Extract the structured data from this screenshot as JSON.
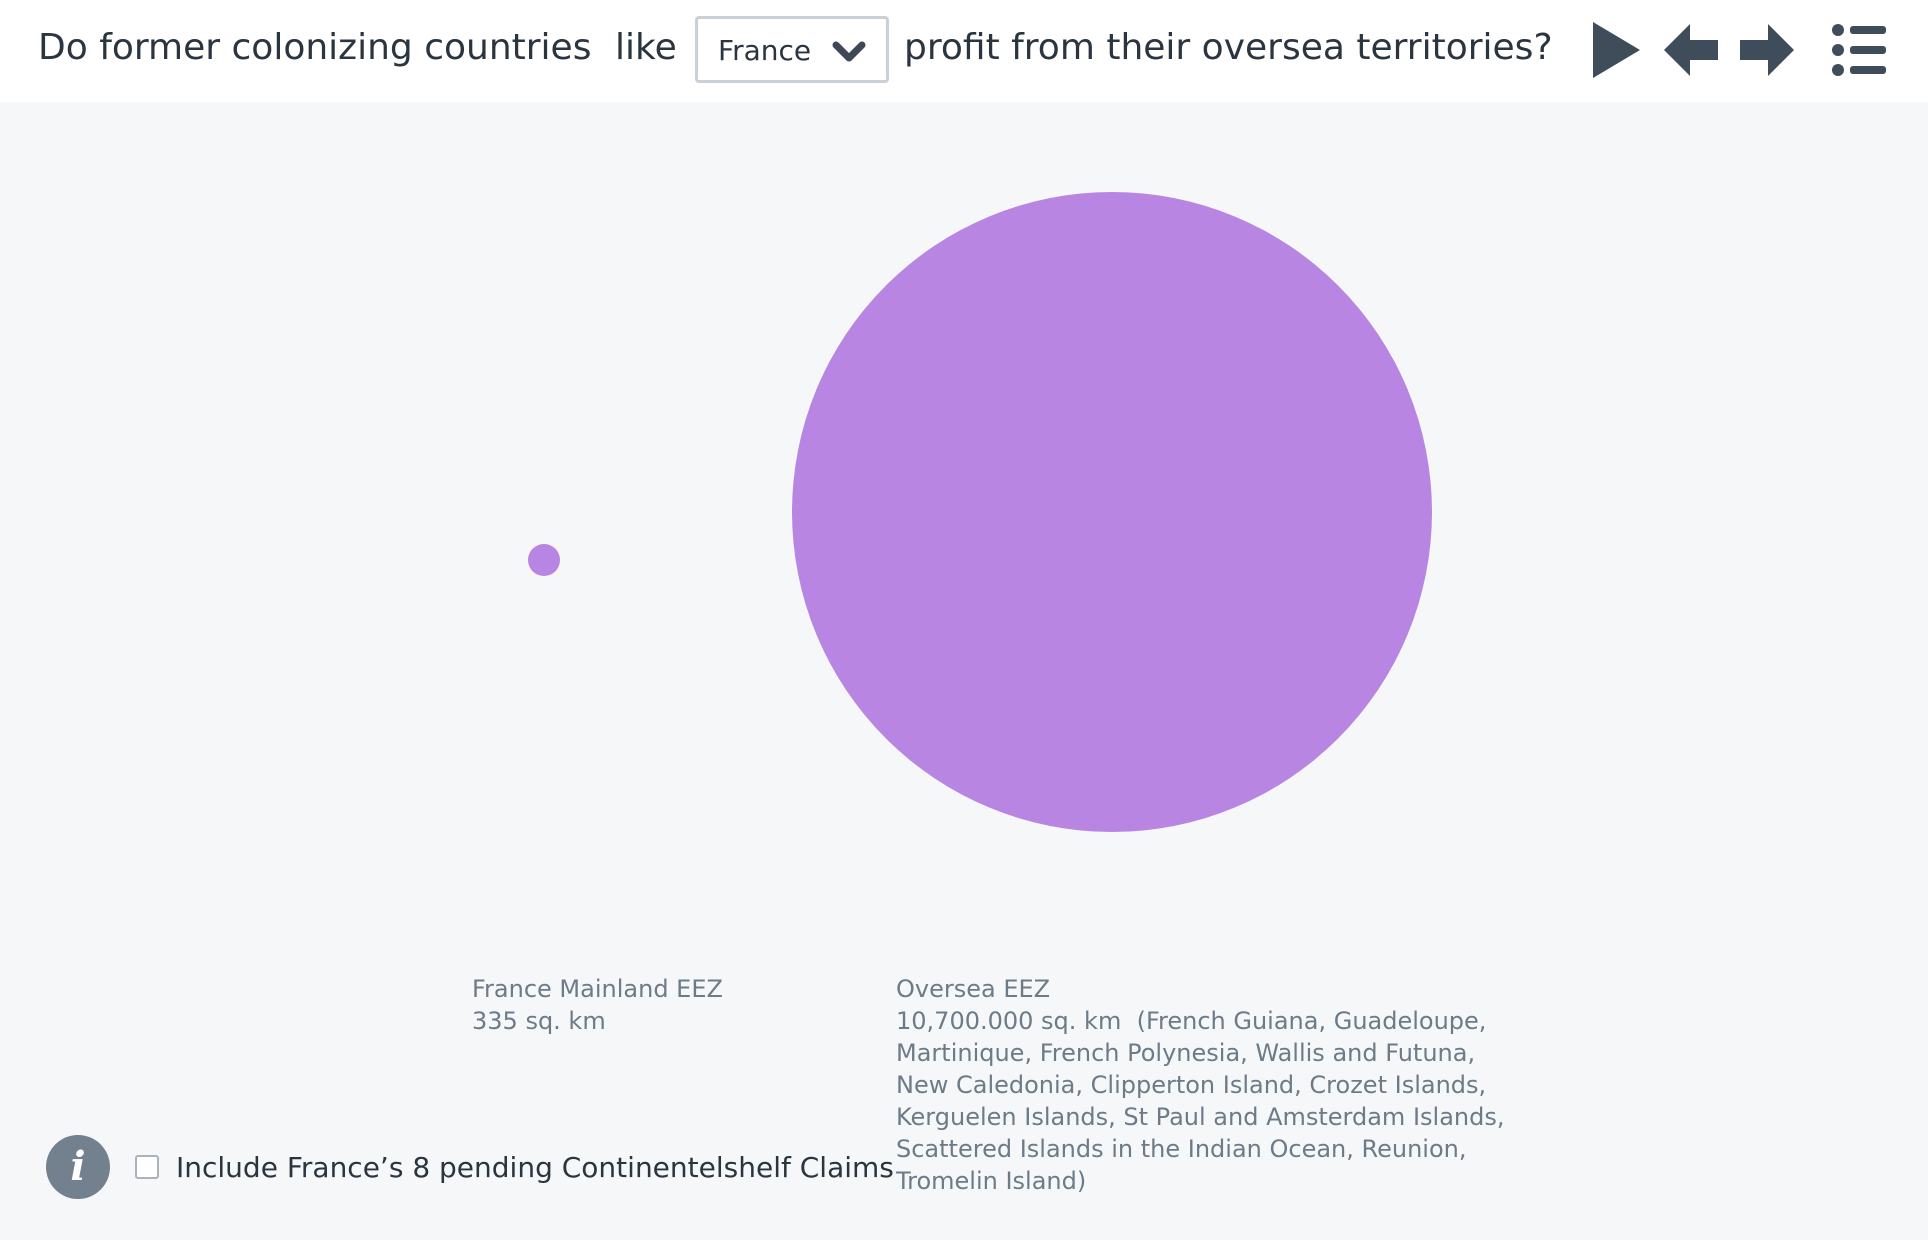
{
  "header": {
    "question_part1": "Do former colonizing countries",
    "question_like": "like",
    "question_part2": "profit from their oversea territories?",
    "country_select": {
      "selected": "France"
    },
    "controls": {
      "play": "play-icon",
      "back": "arrow-left-icon",
      "forward": "arrow-right-icon",
      "menu": "list-icon"
    }
  },
  "chart_data": {
    "type": "bubble",
    "color": "#b886e2",
    "bubbles": [
      {
        "name": "France Mainland EEZ",
        "value_label": "335 sq. km",
        "value": 335
      },
      {
        "name": "Oversea EEZ",
        "value_label": "10,700.000 sq. km",
        "value": 10700000,
        "details": "(French Guiana, Guadeloupe, Martinique, French Polynesia, Wallis and Futuna, New Caledonia, Clipperton Island, Crozet Islands, Kerguelen Islands, St Paul and Amsterdam Islands, Scattered Islands in the Indian Ocean, Reunion,  Tromelin Island)"
      }
    ]
  },
  "footer": {
    "info_icon": "info-icon",
    "checkbox_checked": false,
    "checkbox_label": "Include France’s 8 pending Continentelshelf Claims"
  }
}
